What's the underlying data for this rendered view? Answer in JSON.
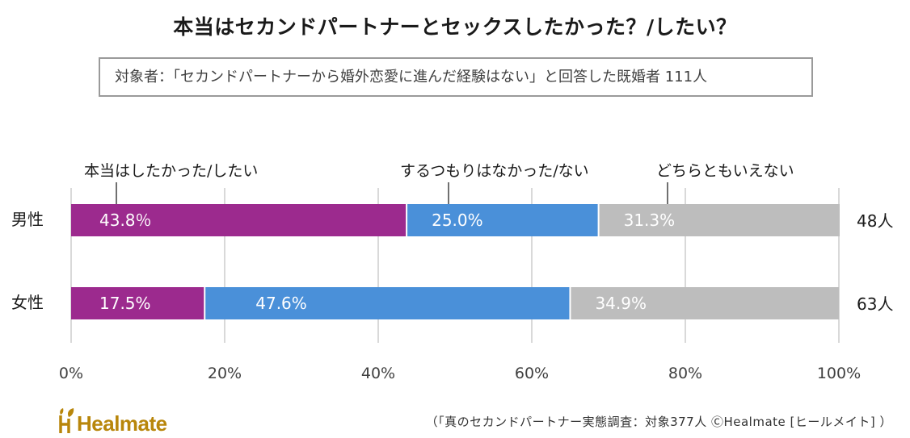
{
  "title": "本当はセカンドパートナーとセックスしたかった？/したい？",
  "subject": "対象者：「セカンドパートナーから婚外恋愛に進んだ経験はない」と回答した既婚者 111人",
  "footer_note": "（「真のセカンドパートナー実態調査：対象377人 ⒸHealmate [ヒールメイト] ）",
  "logo_text": "Healmate",
  "colors": {
    "wanted": "#9c2a8e",
    "not_intended": "#4a90d9",
    "undecided": "#bdbdbd",
    "gridline": "#d9d9d9",
    "logo": "#b8860b"
  },
  "chart_data": {
    "type": "bar",
    "orientation": "horizontal",
    "stacked": true,
    "categories": [
      "男性",
      "女性"
    ],
    "totals": [
      "48人",
      "63人"
    ],
    "series": [
      {
        "name": "本当はしたかった/したい",
        "values": [
          43.8,
          17.5
        ],
        "labels": [
          "43.8％",
          "17.5%"
        ]
      },
      {
        "name": "するつもりはなかった/ない",
        "values": [
          25.0,
          47.6
        ],
        "labels": [
          "25.0%",
          "47.6%"
        ]
      },
      {
        "name": "どちらともいえない",
        "values": [
          31.3,
          34.9
        ],
        "labels": [
          "31.3%",
          "34.9%"
        ]
      }
    ],
    "xlim": [
      0,
      100
    ],
    "xticks": [
      "0%",
      "20%",
      "40%",
      "60%",
      "80%",
      "100%"
    ],
    "grid": true,
    "legend": "callouts-above-first-bar"
  }
}
